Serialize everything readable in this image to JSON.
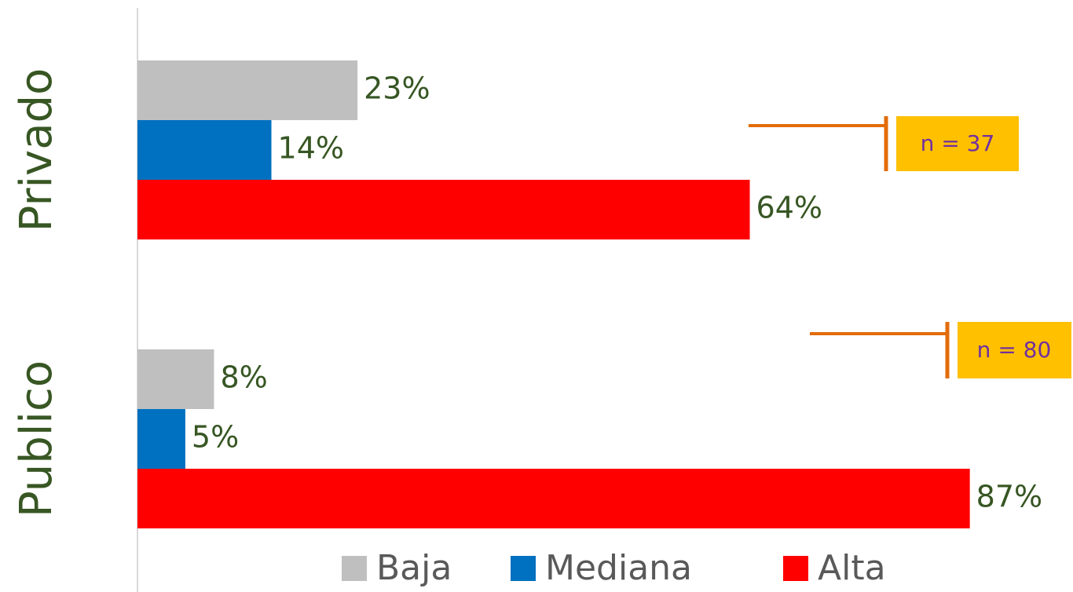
{
  "chart_data": {
    "type": "bar",
    "orientation": "horizontal",
    "categories": [
      "Privado",
      "Publico"
    ],
    "series": [
      {
        "name": "Baja",
        "color": "#bfbfbf",
        "values": [
          23,
          8
        ],
        "value_labels": [
          "23%",
          "8%"
        ]
      },
      {
        "name": "Mediana",
        "color": "#0070c0",
        "values": [
          14,
          5
        ],
        "value_labels": [
          "14%",
          "5%"
        ]
      },
      {
        "name": "Alta",
        "color": "#ff0000",
        "values": [
          64,
          87
        ],
        "value_labels": [
          "64%",
          "87%"
        ]
      }
    ],
    "xlim": [
      0,
      100
    ],
    "annotations": [
      "n = 37",
      "n = 80"
    ],
    "legend": "bottom"
  }
}
